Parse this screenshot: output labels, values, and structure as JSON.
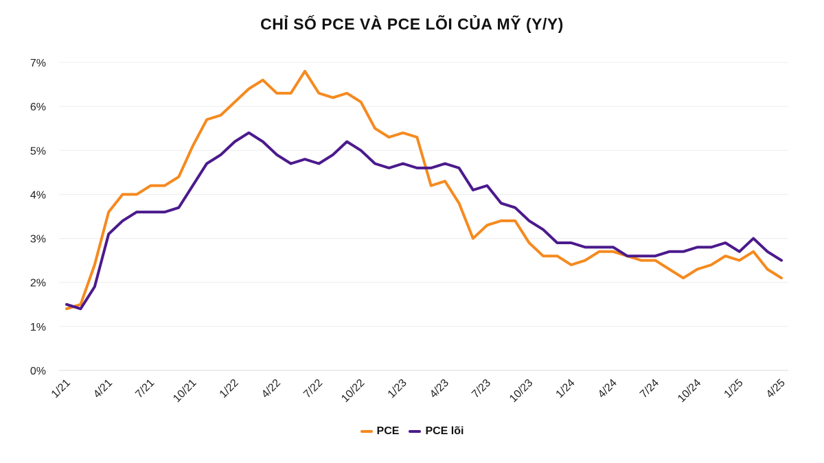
{
  "chart_data": {
    "type": "line",
    "title": "CHỈ SỐ PCE VÀ PCE LÕI CỦA MỸ (Y/Y)",
    "xlabel": "",
    "ylabel": "",
    "ylim": [
      0,
      7
    ],
    "yticks": [
      "0%",
      "1%",
      "2%",
      "3%",
      "4%",
      "5%",
      "6%",
      "7%"
    ],
    "x": [
      "1/21",
      "2/21",
      "3/21",
      "4/21",
      "5/21",
      "6/21",
      "7/21",
      "8/21",
      "9/21",
      "10/21",
      "11/21",
      "12/21",
      "1/22",
      "2/22",
      "3/22",
      "4/22",
      "5/22",
      "6/22",
      "7/22",
      "8/22",
      "9/22",
      "10/22",
      "11/22",
      "12/22",
      "1/23",
      "2/23",
      "3/23",
      "4/23",
      "5/23",
      "6/23",
      "7/23",
      "8/23",
      "9/23",
      "10/23",
      "11/23",
      "12/23",
      "1/24",
      "2/24",
      "3/24",
      "4/24",
      "5/24",
      "6/24",
      "7/24",
      "8/24",
      "9/24",
      "10/24",
      "11/24",
      "12/24",
      "1/25",
      "2/25",
      "3/25",
      "4/25"
    ],
    "xtick_labels": [
      "1/21",
      "4/21",
      "7/21",
      "10/21",
      "1/22",
      "4/22",
      "7/22",
      "10/22",
      "1/23",
      "4/23",
      "7/23",
      "10/23",
      "1/24",
      "4/24",
      "7/24",
      "10/24",
      "1/25",
      "4/25"
    ],
    "series": [
      {
        "name": "PCE",
        "color": "#F58A1F",
        "values": [
          1.4,
          1.5,
          2.4,
          3.6,
          4.0,
          4.0,
          4.2,
          4.2,
          4.4,
          5.1,
          5.7,
          5.8,
          6.1,
          6.4,
          6.6,
          6.3,
          6.3,
          6.8,
          6.3,
          6.2,
          6.3,
          6.1,
          5.5,
          5.3,
          5.4,
          5.3,
          4.2,
          4.3,
          3.8,
          3.0,
          3.3,
          3.4,
          3.4,
          2.9,
          2.6,
          2.6,
          2.4,
          2.5,
          2.7,
          2.7,
          2.6,
          2.5,
          2.5,
          2.3,
          2.1,
          2.3,
          2.4,
          2.6,
          2.5,
          2.7,
          2.3,
          2.1
        ]
      },
      {
        "name": "PCE lõi",
        "color": "#4B1A8C",
        "values": [
          1.5,
          1.4,
          1.9,
          3.1,
          3.4,
          3.6,
          3.6,
          3.6,
          3.7,
          4.2,
          4.7,
          4.9,
          5.2,
          5.4,
          5.2,
          4.9,
          4.7,
          4.8,
          4.7,
          4.9,
          5.2,
          5.0,
          4.7,
          4.6,
          4.7,
          4.6,
          4.6,
          4.7,
          4.6,
          4.1,
          4.2,
          3.8,
          3.7,
          3.4,
          3.2,
          2.9,
          2.9,
          2.8,
          2.8,
          2.8,
          2.6,
          2.6,
          2.6,
          2.7,
          2.7,
          2.8,
          2.8,
          2.9,
          2.7,
          3.0,
          2.7,
          2.5
        ]
      }
    ],
    "legend_position": "bottom-center"
  }
}
